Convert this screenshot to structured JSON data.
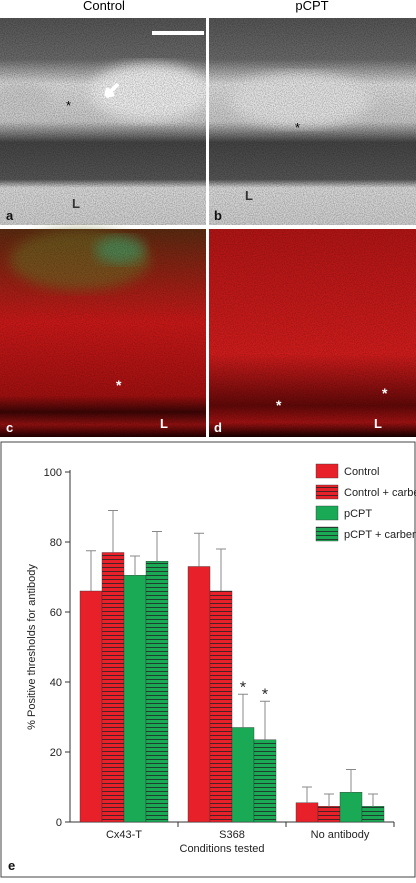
{
  "panels": {
    "column_titles": [
      "Control",
      "pCPT"
    ],
    "letters": [
      "a",
      "b",
      "c",
      "d"
    ],
    "lumen_labels": [
      "L",
      "L",
      "L",
      "L"
    ],
    "asterisks": [
      "*",
      "*",
      "*",
      "*",
      "*"
    ]
  },
  "chart_data": {
    "type": "bar",
    "panel_letter": "e",
    "x_label": "Conditions tested",
    "y_label": "% Positive thresholds for antibody",
    "categories": [
      "Cx43-T",
      "S368",
      "No antibody"
    ],
    "series": [
      {
        "name": "Control",
        "color": "#e8202a",
        "hatch": false,
        "values": [
          66,
          73,
          5.5
        ],
        "errors": [
          11.5,
          9.5,
          4.5
        ]
      },
      {
        "name": "Control + carbenoxolone",
        "color": "#e8202a",
        "hatch": true,
        "values": [
          77,
          66,
          4.5
        ],
        "errors": [
          12,
          12,
          3.5
        ]
      },
      {
        "name": "pCPT",
        "color": "#1aaa55",
        "hatch": false,
        "values": [
          70.5,
          27,
          8.5
        ],
        "errors": [
          5.5,
          9.5,
          6.5
        ]
      },
      {
        "name": "pCPT + carbenoxolone",
        "color": "#1aaa55",
        "hatch": true,
        "values": [
          74.5,
          23.5,
          4.5
        ],
        "errors": [
          8.5,
          11,
          3.5
        ]
      }
    ],
    "annotations": [
      {
        "text": "*",
        "category": "S368",
        "series": "pCPT"
      },
      {
        "text": "*",
        "category": "S368",
        "series": "pCPT + carbenoxolone"
      }
    ],
    "ylim": [
      0,
      100
    ],
    "yticks": [
      0,
      20,
      40,
      60,
      80,
      100
    ],
    "grid": false,
    "legend": "upper right"
  }
}
